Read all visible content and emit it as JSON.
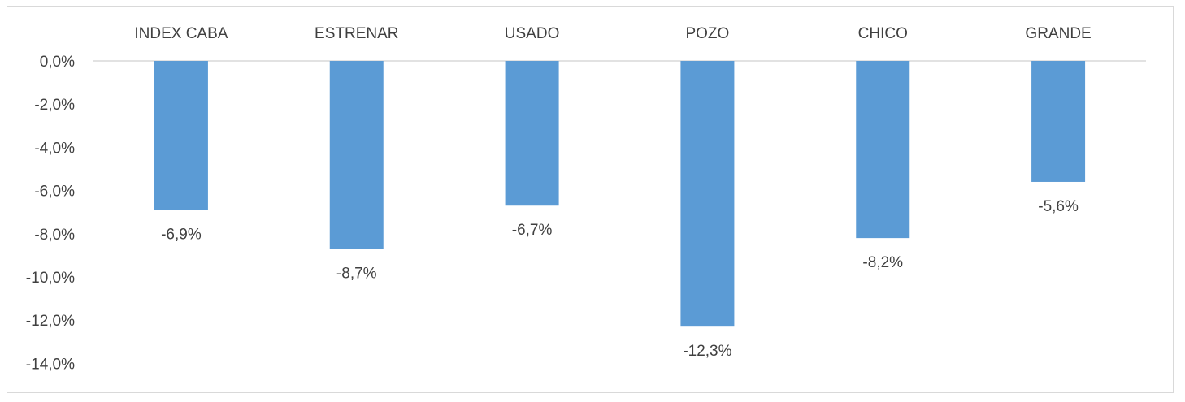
{
  "chart_data": {
    "type": "bar",
    "categories": [
      "INDEX CABA",
      "ESTRENAR",
      "USADO",
      "POZO",
      "CHICO",
      "GRANDE"
    ],
    "series": [
      {
        "values": [
          -6.9,
          -8.7,
          -6.7,
          -12.3,
          -8.2,
          -5.6
        ]
      }
    ],
    "data_labels": [
      "-6,9%",
      "-8,7%",
      "-6,7%",
      "-12,3%",
      "-8,2%",
      "-5,6%"
    ],
    "y_ticks": [
      {
        "value": 0,
        "label": "0,0%"
      },
      {
        "value": -2,
        "label": "-2,0%"
      },
      {
        "value": -4,
        "label": "-4,0%"
      },
      {
        "value": -6,
        "label": "-6,0%"
      },
      {
        "value": -8,
        "label": "-8,0%"
      },
      {
        "value": -10,
        "label": "-10,0%"
      },
      {
        "value": -12,
        "label": "-12,0%"
      },
      {
        "value": -14,
        "label": "-14,0%"
      }
    ],
    "ylim": [
      -14,
      0
    ],
    "category_axis_position": "top",
    "grid": false,
    "legend": "none",
    "bar_color": "#5b9bd5",
    "axis_color": "#d9d9d9",
    "text_color": "#404040"
  }
}
